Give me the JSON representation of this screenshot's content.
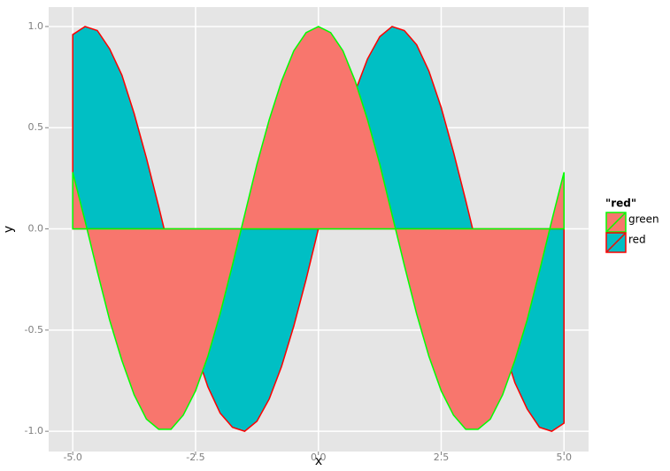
{
  "chart_data": {
    "type": "area",
    "x_label": "x",
    "y_label": "y",
    "legend_title": "\"red\"",
    "legend_position": "right",
    "grid": true,
    "x": [
      -5,
      -4.75,
      -4.5,
      -4.25,
      -4,
      -3.75,
      -3.5,
      -3.25,
      -3,
      -2.75,
      -2.5,
      -2.25,
      -2,
      -1.75,
      -1.5,
      -1.25,
      -1,
      -0.75,
      -0.5,
      -0.25,
      0,
      0.25,
      0.5,
      0.75,
      1,
      1.25,
      1.5,
      1.75,
      2,
      2.25,
      2.5,
      2.75,
      3,
      3.25,
      3.5,
      3.75,
      4,
      4.25,
      4.5,
      4.75,
      5
    ],
    "series": [
      {
        "name": "green",
        "fill": "#F8766D",
        "color": "#00FF00",
        "values": [
          0.28,
          0.04,
          -0.21,
          -0.45,
          -0.65,
          -0.82,
          -0.94,
          -0.99,
          -0.99,
          -0.92,
          -0.8,
          -0.63,
          -0.42,
          -0.18,
          0.07,
          0.32,
          0.54,
          0.73,
          0.88,
          0.97,
          1,
          0.97,
          0.88,
          0.73,
          0.54,
          0.32,
          0.07,
          -0.18,
          -0.42,
          -0.63,
          -0.8,
          -0.92,
          -0.99,
          -0.99,
          -0.94,
          -0.82,
          -0.65,
          -0.45,
          -0.21,
          0.04,
          0.28
        ]
      },
      {
        "name": "red",
        "fill": "#00BFC4",
        "color": "#FF0000",
        "values": [
          0.96,
          1.0,
          0.98,
          0.89,
          0.76,
          0.57,
          0.35,
          0.11,
          -0.14,
          -0.38,
          -0.6,
          -0.78,
          -0.91,
          -0.98,
          -1.0,
          -0.95,
          -0.84,
          -0.68,
          -0.48,
          -0.25,
          0,
          0.25,
          0.48,
          0.68,
          0.84,
          0.95,
          1.0,
          0.98,
          0.91,
          0.78,
          0.6,
          0.38,
          0.14,
          -0.11,
          -0.35,
          -0.57,
          -0.76,
          -0.89,
          -0.98,
          -1.0,
          -0.96
        ]
      }
    ],
    "xlim": [
      -5.49,
      5.5
    ],
    "xticks": [
      {
        "value": -5,
        "label": "-5.0"
      },
      {
        "value": -2.5,
        "label": "-2.5"
      },
      {
        "value": 0,
        "label": "0.0"
      },
      {
        "value": 2.5,
        "label": "2.5"
      },
      {
        "value": 5,
        "label": "5.0"
      }
    ],
    "ylim": [
      -1.1,
      1.096
    ],
    "yticks": [
      {
        "value": -1,
        "label": "-1.0"
      },
      {
        "value": -0.5,
        "label": "-0.5"
      },
      {
        "value": 0,
        "label": "0.0"
      },
      {
        "value": 0.5,
        "label": "0.5"
      },
      {
        "value": 1,
        "label": "1.0"
      }
    ]
  }
}
